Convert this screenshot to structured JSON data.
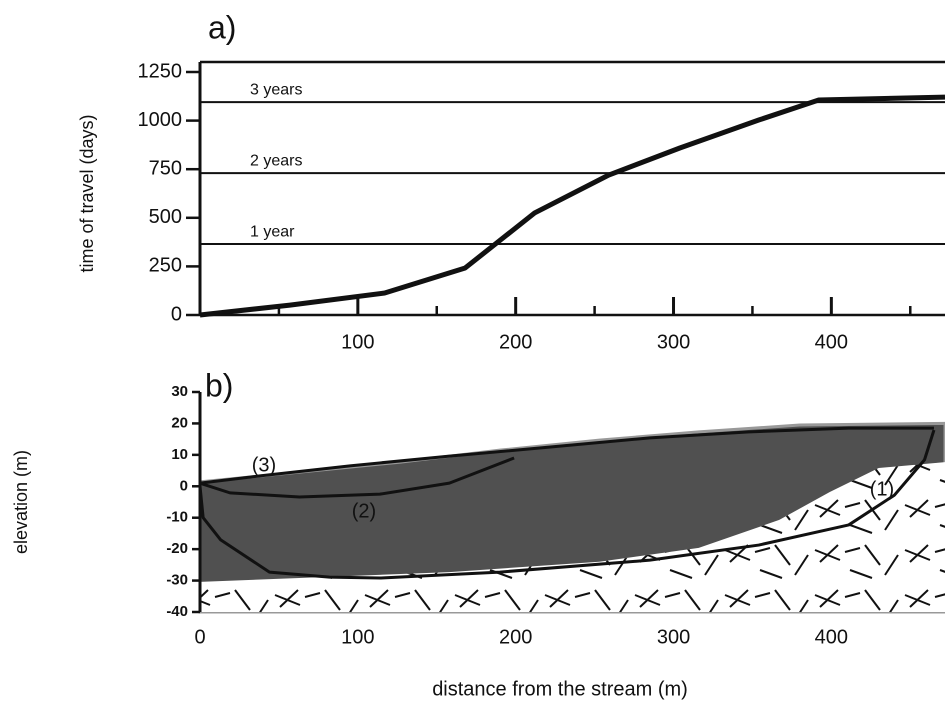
{
  "chart_data": [
    {
      "type": "line",
      "panel_label": "a)",
      "y_label": "time of travel (days)",
      "xlim": [
        0,
        472
      ],
      "ylim": [
        0,
        1250
      ],
      "xticks": [
        100,
        200,
        300,
        400
      ],
      "x_minor_ticks": [
        50,
        150,
        250,
        350,
        450
      ],
      "yticks": [
        0,
        250,
        500,
        750,
        1000,
        1250
      ],
      "reference_lines": [
        {
          "value": 365,
          "label": "1 year"
        },
        {
          "value": 730,
          "label": "2 years"
        },
        {
          "value": 1095,
          "label": "3 years"
        }
      ],
      "series": [
        {
          "color": "#111111",
          "x": [
            0,
            57,
            117,
            168,
            212,
            259,
            304,
            354,
            392,
            472
          ],
          "values": [
            0,
            51,
            113,
            242,
            525,
            720,
            859,
            1003,
            1106,
            1121
          ]
        }
      ]
    },
    {
      "type": "cross-section",
      "panel_label": "b)",
      "x_label": "distance from the stream (m)",
      "y_label": "elevation (m)",
      "xlim": [
        0,
        472
      ],
      "ylim": [
        -40,
        30
      ],
      "xticks": [
        0,
        100,
        200,
        300,
        400
      ],
      "yticks": [
        -40,
        -30,
        -20,
        -10,
        0,
        10,
        20,
        30
      ],
      "surface": {
        "color": "#505050",
        "x": [
          0,
          63,
          127,
          190,
          253,
          316,
          380,
          472
        ],
        "values": [
          1.4,
          4.5,
          7.7,
          11.5,
          14.7,
          17.3,
          19.5,
          20
        ]
      },
      "bedrock": {
        "x": [
          0,
          63,
          158,
          253,
          316,
          367,
          399,
          430,
          472
        ],
        "values": [
          -30.4,
          -29.2,
          -27.3,
          -24,
          -19.6,
          -10.7,
          -1.8,
          5.8,
          7.7
        ]
      },
      "series": [
        {
          "name": "(1)",
          "color": "#111111",
          "x": [
            0,
            2,
            13,
            44,
            82,
            114,
            190,
            285,
            354,
            411,
            440,
            459,
            465
          ],
          "values": [
            0,
            -10,
            -17,
            -27.3,
            -28.9,
            -29.2,
            -27.3,
            -23.5,
            -18.7,
            -12.3,
            -2.8,
            8.4,
            17.9
          ]
        },
        {
          "name": "(2)",
          "color": "#111111",
          "x": [
            0,
            19,
            63,
            114,
            158,
            199
          ],
          "values": [
            1,
            -2.1,
            -3.4,
            -2.5,
            1,
            9
          ]
        },
        {
          "name": "(3)",
          "color": "#111111",
          "x": [
            0,
            38,
            95,
            158,
            222,
            285,
            348,
            411,
            465
          ],
          "values": [
            1,
            3.3,
            6.5,
            9.6,
            12.5,
            15.4,
            17.3,
            18.5,
            18.5
          ]
        }
      ]
    }
  ]
}
